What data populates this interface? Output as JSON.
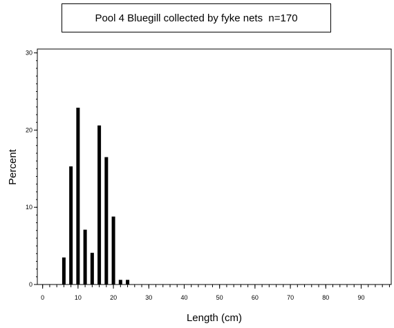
{
  "chart_data": {
    "type": "bar",
    "title": "Pool 4 Bluegill collected by fyke nets  n=170",
    "xlabel": "Length (cm)",
    "ylabel": "Percent",
    "xlim": [
      -1.5,
      98.5
    ],
    "ylim": [
      0,
      30.5
    ],
    "x_ticks": [
      0,
      10,
      20,
      30,
      40,
      50,
      60,
      70,
      80,
      90
    ],
    "y_ticks": [
      0,
      10,
      20,
      30
    ],
    "x_minor_step": 2,
    "y_minor_step": 1,
    "x": [
      6,
      8,
      10,
      12,
      14,
      16,
      18,
      20,
      22,
      24
    ],
    "values": [
      3.5,
      15.3,
      22.9,
      7.1,
      4.1,
      20.6,
      16.5,
      8.8,
      0.6,
      0.6
    ],
    "bar_color": "#000000",
    "grid": false,
    "legend": "none"
  }
}
